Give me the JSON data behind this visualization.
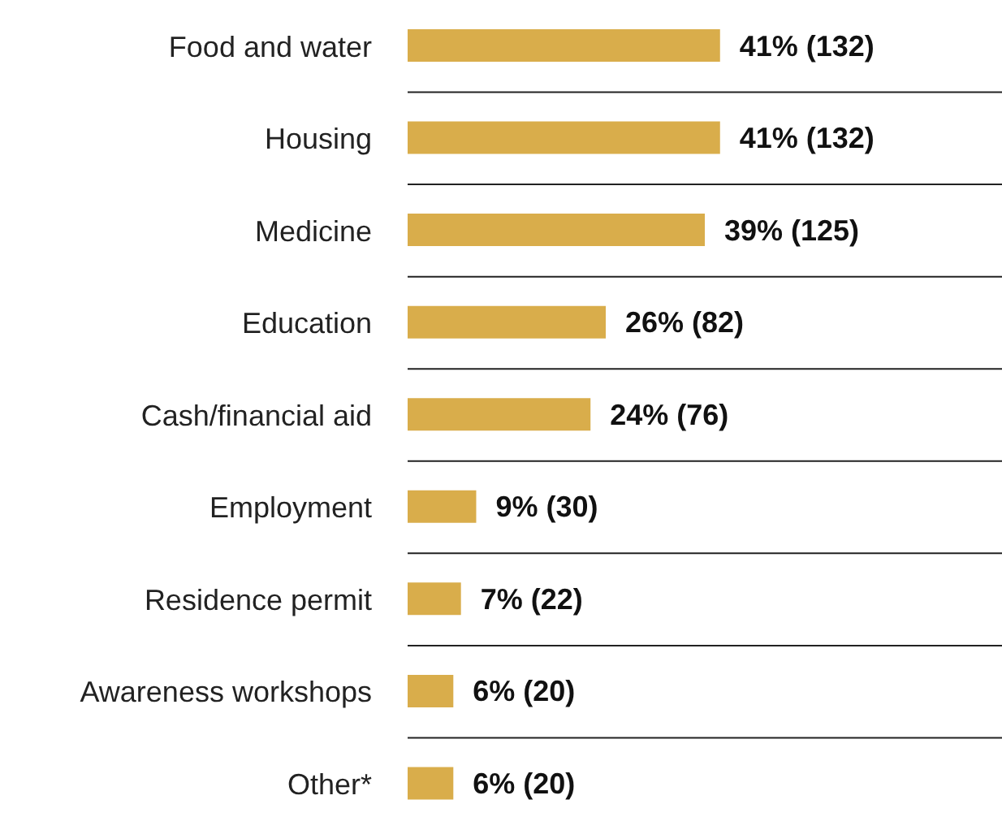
{
  "chart_data": {
    "type": "bar",
    "orientation": "horizontal",
    "categories": [
      "Food and water",
      "Housing",
      "Medicine",
      "Education",
      "Cash/financial aid",
      "Employment",
      "Residence permit",
      "Awareness workshops",
      "Other*"
    ],
    "values": [
      41,
      41,
      39,
      26,
      24,
      9,
      7,
      6,
      6
    ],
    "value_labels": [
      "41% (132)",
      "41% (132)",
      "39% (125)",
      "26% (82)",
      "24% (76)",
      "9% (30)",
      "7% (22)",
      "6% (20)",
      "6% (20)"
    ],
    "color": "#d9ad4b",
    "xlim": [
      0,
      78
    ],
    "tick_labels": "y",
    "grid": "y"
  }
}
